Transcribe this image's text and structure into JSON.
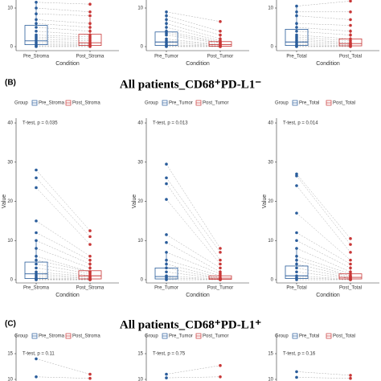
{
  "panels": [
    {
      "label": "(B)",
      "title": "All patients_CD68⁺PD-L1⁻"
    },
    {
      "label": "(C)",
      "title": "All patients_CD68⁺PD-L1⁺"
    }
  ],
  "chart_data": [
    {
      "type": "box",
      "categories": [
        "Pre_Stroma",
        "Post_Stroma"
      ],
      "xlabel": "Condition",
      "ylim": [
        0,
        12
      ],
      "yticks": [
        0,
        10
      ],
      "series": [
        {
          "color": "#2a5d9b",
          "values": [
            11.5,
            10,
            8.5,
            7,
            6,
            5,
            4,
            3,
            2.5,
            2,
            1.5,
            1,
            0.5,
            0.2,
            0
          ],
          "box": {
            "whisker_low": 0,
            "q1": 0.5,
            "median": 1.5,
            "q3": 5.5,
            "whisker_high": 11.5
          }
        },
        {
          "color": "#c83737",
          "values": [
            11,
            9,
            8,
            6,
            5,
            4,
            3,
            2.5,
            2,
            1.5,
            1,
            0.7,
            0.4,
            0.2,
            0
          ],
          "box": {
            "whisker_low": 0,
            "q1": 0.3,
            "median": 1,
            "q3": 3.2,
            "whisker_high": 7.5
          }
        }
      ]
    },
    {
      "type": "box",
      "categories": [
        "Pre_Tumor",
        "Post_Tumor"
      ],
      "xlabel": "Condition",
      "ylim": [
        0,
        12
      ],
      "yticks": [
        0,
        10
      ],
      "series": [
        {
          "color": "#2a5d9b",
          "values": [
            9,
            8,
            7,
            6,
            5,
            4,
            3.5,
            3,
            2,
            1.5,
            1,
            0.5,
            0.2,
            0
          ],
          "box": {
            "whisker_low": 0,
            "q1": 0.3,
            "median": 1.2,
            "q3": 3.8,
            "whisker_high": 9
          }
        },
        {
          "color": "#c83737",
          "values": [
            6.5,
            4,
            3,
            2,
            1.5,
            1.2,
            1,
            0.8,
            0.5,
            0.4,
            0.2,
            0.1,
            0,
            0
          ],
          "box": {
            "whisker_low": 0,
            "q1": 0.1,
            "median": 0.5,
            "q3": 1.3,
            "whisker_high": 3
          }
        }
      ]
    },
    {
      "type": "box",
      "categories": [
        "Pre_Total",
        "Post_Total"
      ],
      "xlabel": "Condition",
      "ylim": [
        0,
        12
      ],
      "yticks": [
        0,
        10
      ],
      "series": [
        {
          "color": "#2a5d9b",
          "values": [
            10.5,
            9,
            8,
            6,
            5,
            4,
            3,
            2.5,
            2,
            1.5,
            1,
            0.5,
            0.2,
            0
          ],
          "box": {
            "whisker_low": 0,
            "q1": 0.3,
            "median": 1.2,
            "q3": 4.5,
            "whisker_high": 10.5
          }
        },
        {
          "color": "#c83737",
          "values": [
            11.8,
            9,
            7,
            5.5,
            4,
            3,
            2,
            1.5,
            1,
            0.8,
            0.5,
            0.3,
            0.1,
            0
          ],
          "box": {
            "whisker_low": 0,
            "q1": 0.2,
            "median": 0.8,
            "q3": 2,
            "whisker_high": 4.5
          }
        }
      ]
    },
    {
      "type": "box",
      "categories": [
        "Pre_Stroma",
        "Post_Stroma"
      ],
      "xlabel": "Condition",
      "ylabel": "Value",
      "annotation": "T-test, p = 0.035",
      "legend_title": "Group",
      "ylim": [
        0,
        40
      ],
      "yticks": [
        0,
        10,
        20,
        30,
        40
      ],
      "series": [
        {
          "name": "Pre_Stroma",
          "color": "#2a5d9b",
          "values": [
            28,
            26,
            23.5,
            15,
            12,
            10,
            8,
            6,
            5,
            4,
            3,
            2,
            1.5,
            1,
            0.5,
            0.2,
            0,
            0
          ],
          "box": {
            "whisker_low": 0,
            "q1": 0.3,
            "median": 1.5,
            "q3": 4.5,
            "whisker_high": 10
          }
        },
        {
          "name": "Post_Stroma",
          "color": "#c83737",
          "values": [
            12.5,
            11,
            9,
            6,
            5,
            4,
            3,
            2,
            2,
            1.5,
            1,
            0.8,
            0.5,
            0.3,
            0.1,
            0,
            0,
            0
          ],
          "box": {
            "whisker_low": 0,
            "q1": 0.2,
            "median": 1,
            "q3": 2.3,
            "whisker_high": 5
          }
        }
      ]
    },
    {
      "type": "box",
      "categories": [
        "Pre_Tumor",
        "Post_Tumor"
      ],
      "xlabel": "Condition",
      "ylabel": "Value",
      "annotation": "T-test, p = 0.013",
      "legend_title": "Group",
      "ylim": [
        0,
        40
      ],
      "yticks": [
        0,
        10,
        20,
        30,
        40
      ],
      "series": [
        {
          "name": "Pre_Tumor",
          "color": "#2a5d9b",
          "values": [
            29.5,
            26,
            24.5,
            20.5,
            11.5,
            9.5,
            7,
            5,
            4,
            3,
            2,
            1,
            0.5,
            0
          ],
          "box": {
            "whisker_low": 0,
            "q1": 0.2,
            "median": 0.8,
            "q3": 3,
            "whisker_high": 7
          }
        },
        {
          "name": "Post_Tumor",
          "color": "#c83737",
          "values": [
            8,
            7,
            5,
            4,
            3,
            2,
            1.5,
            1,
            0.5,
            0.3,
            0.2,
            0.1,
            0,
            0
          ],
          "box": {
            "whisker_low": 0,
            "q1": 0.1,
            "median": 0.4,
            "q3": 1,
            "whisker_high": 2.5
          }
        }
      ]
    },
    {
      "type": "box",
      "categories": [
        "Pre_Total",
        "Post_Total"
      ],
      "xlabel": "Condition",
      "ylabel": "Value",
      "annotation": "T-test, p = 0.014",
      "legend_title": "Group",
      "ylim": [
        0,
        40
      ],
      "yticks": [
        0,
        10,
        20,
        30,
        40
      ],
      "series": [
        {
          "name": "Pre_Total",
          "color": "#2a5d9b",
          "values": [
            27,
            26.5,
            24,
            17,
            12,
            10,
            8,
            6,
            5,
            4,
            3,
            2,
            1,
            0.5,
            0
          ],
          "box": {
            "whisker_low": 0,
            "q1": 0.3,
            "median": 1,
            "q3": 3.5,
            "whisker_high": 8
          }
        },
        {
          "name": "Post_Total",
          "color": "#c83737",
          "values": [
            10.5,
            9,
            7,
            5,
            4,
            3,
            2,
            1.5,
            1,
            0.8,
            0.5,
            0.3,
            0.1,
            0,
            0
          ],
          "box": {
            "whisker_low": 0,
            "q1": 0.2,
            "median": 0.6,
            "q3": 1.5,
            "whisker_high": 3.5
          }
        }
      ]
    },
    {
      "type": "box",
      "annotation": "T-test, p = 0.11",
      "legend_title": "Group",
      "ylim": [
        10,
        18
      ],
      "yticks": [
        10,
        15
      ],
      "series": [
        {
          "name": "Pre_Stroma",
          "color": "#2a5d9b",
          "values": [
            14,
            10.5
          ]
        },
        {
          "name": "Post_Stroma",
          "color": "#c83737",
          "values": [
            11,
            10.2
          ]
        }
      ]
    },
    {
      "type": "box",
      "annotation": "T-test, p = 0.75",
      "legend_title": "Group",
      "ylim": [
        10,
        18
      ],
      "yticks": [
        10,
        15
      ],
      "series": [
        {
          "name": "Pre_Tumor",
          "color": "#2a5d9b",
          "values": [
            11,
            10.3
          ]
        },
        {
          "name": "Post_Tumor",
          "color": "#c83737",
          "values": [
            12.7,
            10.5
          ]
        }
      ]
    },
    {
      "type": "box",
      "annotation": "T-test, p = 0.16",
      "legend_title": "Group",
      "ylim": [
        10,
        18
      ],
      "yticks": [
        10,
        15
      ],
      "series": [
        {
          "name": "Pre_Total",
          "color": "#2a5d9b",
          "values": [
            11.5,
            10.4
          ]
        },
        {
          "name": "Post_Total",
          "color": "#c83737",
          "values": [
            10.8,
            10.2
          ]
        }
      ]
    }
  ]
}
